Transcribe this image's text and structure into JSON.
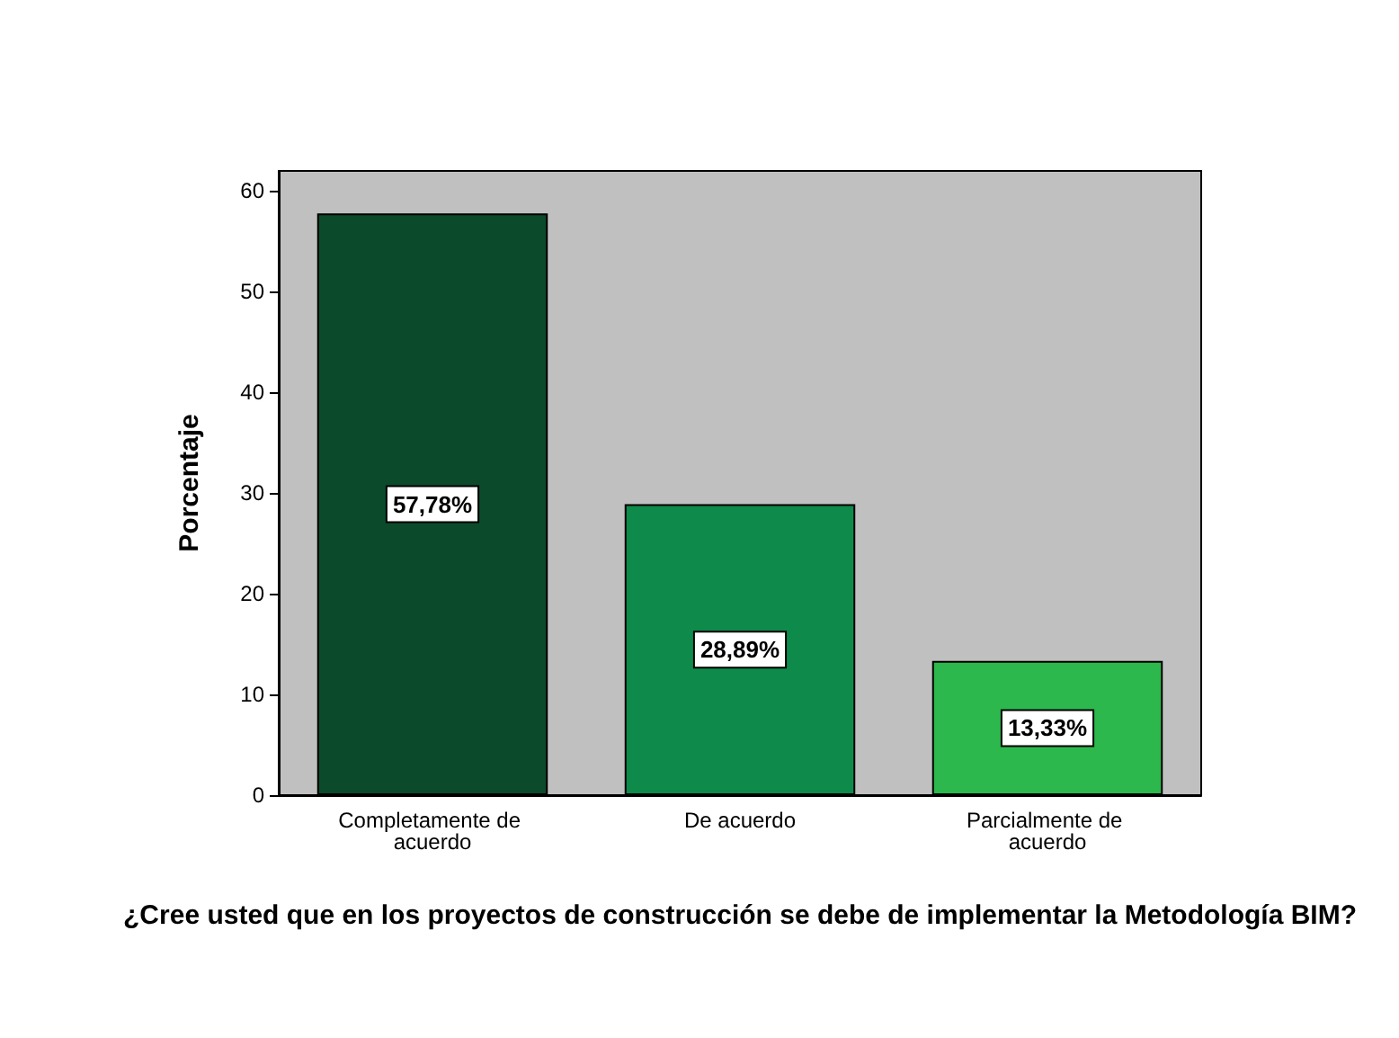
{
  "chart_data": {
    "type": "bar",
    "xlabel": "¿Cree usted que en los proyectos de construcción se debe de implementar la Metodología BIM?",
    "ylabel": "Porcentaje",
    "categories": [
      "Completamente de acuerdo",
      "De acuerdo",
      "Parcialmente de acuerdo"
    ],
    "values": [
      57.78,
      28.89,
      13.33
    ],
    "colors": [
      "#0b4a2a",
      "#0e8a4a",
      "#2cb84c"
    ],
    "value_labels": [
      "57,78%",
      "28,89%",
      "13,33%"
    ],
    "ylim": [
      0,
      62
    ],
    "yticks": [
      0,
      10,
      20,
      30,
      40,
      50,
      60
    ],
    "grid": false
  }
}
